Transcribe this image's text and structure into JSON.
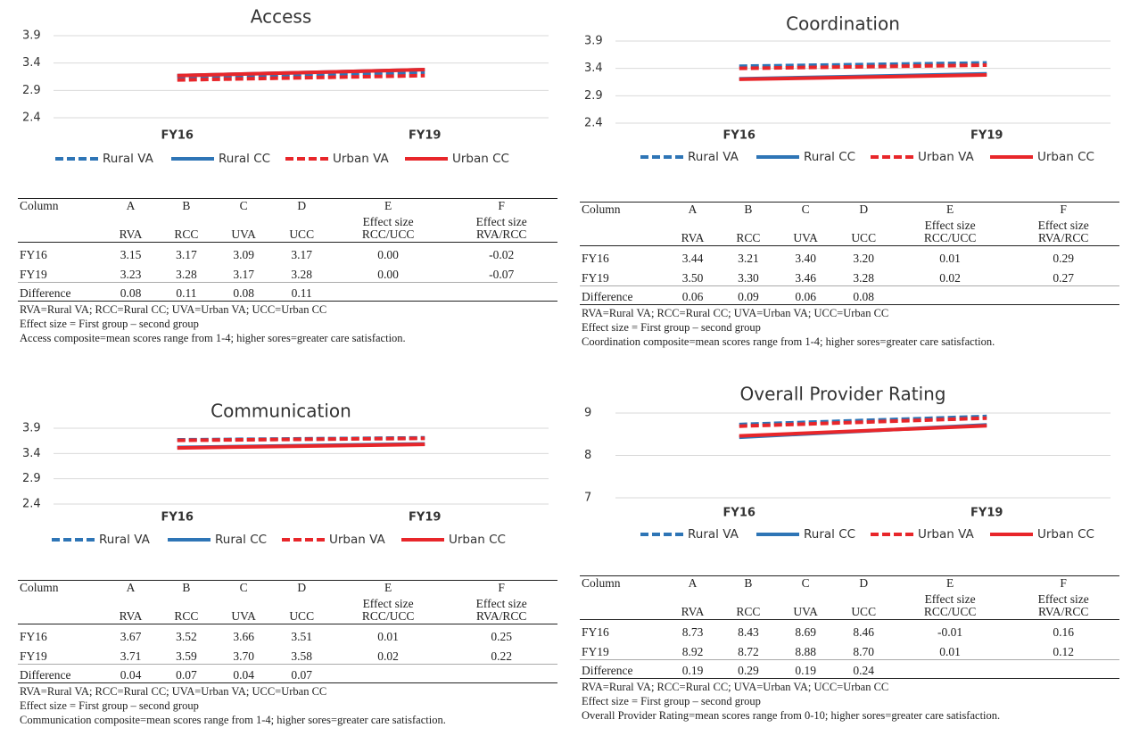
{
  "chart_data": [
    {
      "type": "line",
      "title": "Access",
      "categories": [
        "FY16",
        "FY19"
      ],
      "ylim": [
        2.4,
        3.9
      ],
      "yticks": [
        2.4,
        2.9,
        3.4,
        3.9
      ],
      "grid": true,
      "series": [
        {
          "name": "Rural VA",
          "color": "#2e75b6",
          "dashed": true,
          "values": [
            3.15,
            3.23
          ]
        },
        {
          "name": "Rural CC",
          "color": "#2e75b6",
          "dashed": false,
          "values": [
            3.17,
            3.28
          ]
        },
        {
          "name": "Urban VA",
          "color": "#e8262a",
          "dashed": true,
          "values": [
            3.09,
            3.17
          ]
        },
        {
          "name": "Urban CC",
          "color": "#e8262a",
          "dashed": false,
          "values": [
            3.17,
            3.28
          ]
        }
      ]
    },
    {
      "type": "line",
      "title": "Coordination",
      "categories": [
        "FY16",
        "FY19"
      ],
      "ylim": [
        2.4,
        3.9
      ],
      "yticks": [
        2.4,
        2.9,
        3.4,
        3.9
      ],
      "grid": true,
      "series": [
        {
          "name": "Rural VA",
          "color": "#2e75b6",
          "dashed": true,
          "values": [
            3.44,
            3.5
          ]
        },
        {
          "name": "Rural CC",
          "color": "#2e75b6",
          "dashed": false,
          "values": [
            3.21,
            3.3
          ]
        },
        {
          "name": "Urban VA",
          "color": "#e8262a",
          "dashed": true,
          "values": [
            3.4,
            3.46
          ]
        },
        {
          "name": "Urban CC",
          "color": "#e8262a",
          "dashed": false,
          "values": [
            3.2,
            3.28
          ]
        }
      ]
    },
    {
      "type": "line",
      "title": "Communication",
      "categories": [
        "FY16",
        "FY19"
      ],
      "ylim": [
        2.4,
        3.9
      ],
      "yticks": [
        2.4,
        2.9,
        3.4,
        3.9
      ],
      "grid": true,
      "series": [
        {
          "name": "Rural VA",
          "color": "#2e75b6",
          "dashed": true,
          "values": [
            3.67,
            3.71
          ]
        },
        {
          "name": "Rural CC",
          "color": "#2e75b6",
          "dashed": false,
          "values": [
            3.52,
            3.59
          ]
        },
        {
          "name": "Urban VA",
          "color": "#e8262a",
          "dashed": true,
          "values": [
            3.66,
            3.7
          ]
        },
        {
          "name": "Urban CC",
          "color": "#e8262a",
          "dashed": false,
          "values": [
            3.51,
            3.58
          ]
        }
      ]
    },
    {
      "type": "line",
      "title": "Overall Provider Rating",
      "categories": [
        "FY16",
        "FY19"
      ],
      "ylim": [
        7,
        9
      ],
      "yticks": [
        7,
        8,
        9
      ],
      "grid": true,
      "series": [
        {
          "name": "Rural VA",
          "color": "#2e75b6",
          "dashed": true,
          "values": [
            8.73,
            8.92
          ]
        },
        {
          "name": "Rural CC",
          "color": "#2e75b6",
          "dashed": false,
          "values": [
            8.43,
            8.72
          ]
        },
        {
          "name": "Urban VA",
          "color": "#e8262a",
          "dashed": true,
          "values": [
            8.69,
            8.88
          ]
        },
        {
          "name": "Urban CC",
          "color": "#e8262a",
          "dashed": false,
          "values": [
            8.46,
            8.7
          ]
        }
      ]
    }
  ],
  "tables": [
    {
      "header": [
        "Column",
        "A",
        "B",
        "C",
        "D",
        "E",
        "F"
      ],
      "subheader": [
        "RVA",
        "RCC",
        "UVA",
        "UCC",
        [
          "Effect size",
          "RCC/UCC"
        ],
        [
          "Effect size",
          "RVA/RCC"
        ]
      ],
      "rows": [
        [
          "FY16",
          "3.15",
          "3.17",
          "3.09",
          "3.17",
          "0.00",
          "-0.02"
        ],
        [
          "FY19",
          "3.23",
          "3.28",
          "3.17",
          "3.28",
          "0.00",
          "-0.07"
        ]
      ],
      "difference": [
        "Difference",
        "0.08",
        "0.11",
        "0.08",
        "0.11"
      ],
      "notes": [
        "RVA=Rural VA; RCC=Rural CC; UVA=Urban VA; UCC=Urban CC",
        "Effect size = First group – second group",
        "Access composite=mean scores range from 1-4; higher sores=greater care satisfaction."
      ]
    },
    {
      "header": [
        "Column",
        "A",
        "B",
        "C",
        "D",
        "E",
        "F"
      ],
      "subheader": [
        "RVA",
        "RCC",
        "UVA",
        "UCC",
        [
          "Effect size",
          "RCC/UCC"
        ],
        [
          "Effect size",
          "RVA/RCC"
        ]
      ],
      "rows": [
        [
          "FY16",
          "3.44",
          "3.21",
          "3.40",
          "3.20",
          "0.01",
          "0.29"
        ],
        [
          "FY19",
          "3.50",
          "3.30",
          "3.46",
          "3.28",
          "0.02",
          "0.27"
        ]
      ],
      "difference": [
        "Difference",
        "0.06",
        "0.09",
        "0.06",
        "0.08"
      ],
      "notes": [
        "RVA=Rural VA; RCC=Rural CC; UVA=Urban VA; UCC=Urban CC",
        "Effect size = First group – second group",
        "Coordination composite=mean scores range from 1-4; higher sores=greater care satisfaction."
      ]
    },
    {
      "header": [
        "Column",
        "A",
        "B",
        "C",
        "D",
        "E",
        "F"
      ],
      "subheader": [
        "RVA",
        "RCC",
        "UVA",
        "UCC",
        [
          "Effect size",
          "RCC/UCC"
        ],
        [
          "Effect size",
          "RVA/RCC"
        ]
      ],
      "rows": [
        [
          "FY16",
          "3.67",
          "3.52",
          "3.66",
          "3.51",
          "0.01",
          "0.25"
        ],
        [
          "FY19",
          "3.71",
          "3.59",
          "3.70",
          "3.58",
          "0.02",
          "0.22"
        ]
      ],
      "difference": [
        "Difference",
        "0.04",
        "0.07",
        "0.04",
        "0.07"
      ],
      "notes": [
        "RVA=Rural VA; RCC=Rural CC; UVA=Urban VA; UCC=Urban CC",
        "Effect size = First group – second group",
        "Communication composite=mean scores range from 1-4; higher sores=greater care satisfaction."
      ]
    },
    {
      "header": [
        "Column",
        "A",
        "B",
        "C",
        "D",
        "E",
        "F"
      ],
      "subheader": [
        "RVA",
        "RCC",
        "UVA",
        "UCC",
        [
          "Effect size",
          "RCC/UCC"
        ],
        [
          "Effect size",
          "RVA/RCC"
        ]
      ],
      "rows": [
        [
          "FY16",
          "8.73",
          "8.43",
          "8.69",
          "8.46",
          "-0.01",
          "0.16"
        ],
        [
          "FY19",
          "8.92",
          "8.72",
          "8.88",
          "8.70",
          "0.01",
          "0.12"
        ]
      ],
      "difference": [
        "Difference",
        "0.19",
        "0.29",
        "0.19",
        "0.24"
      ],
      "notes": [
        "RVA=Rural VA; RCC=Rural CC; UVA=Urban VA; UCC=Urban CC",
        "Effect size = First group – second group",
        "Overall Provider Rating=mean scores range from 0-10; higher sores=greater care satisfaction."
      ]
    }
  ]
}
